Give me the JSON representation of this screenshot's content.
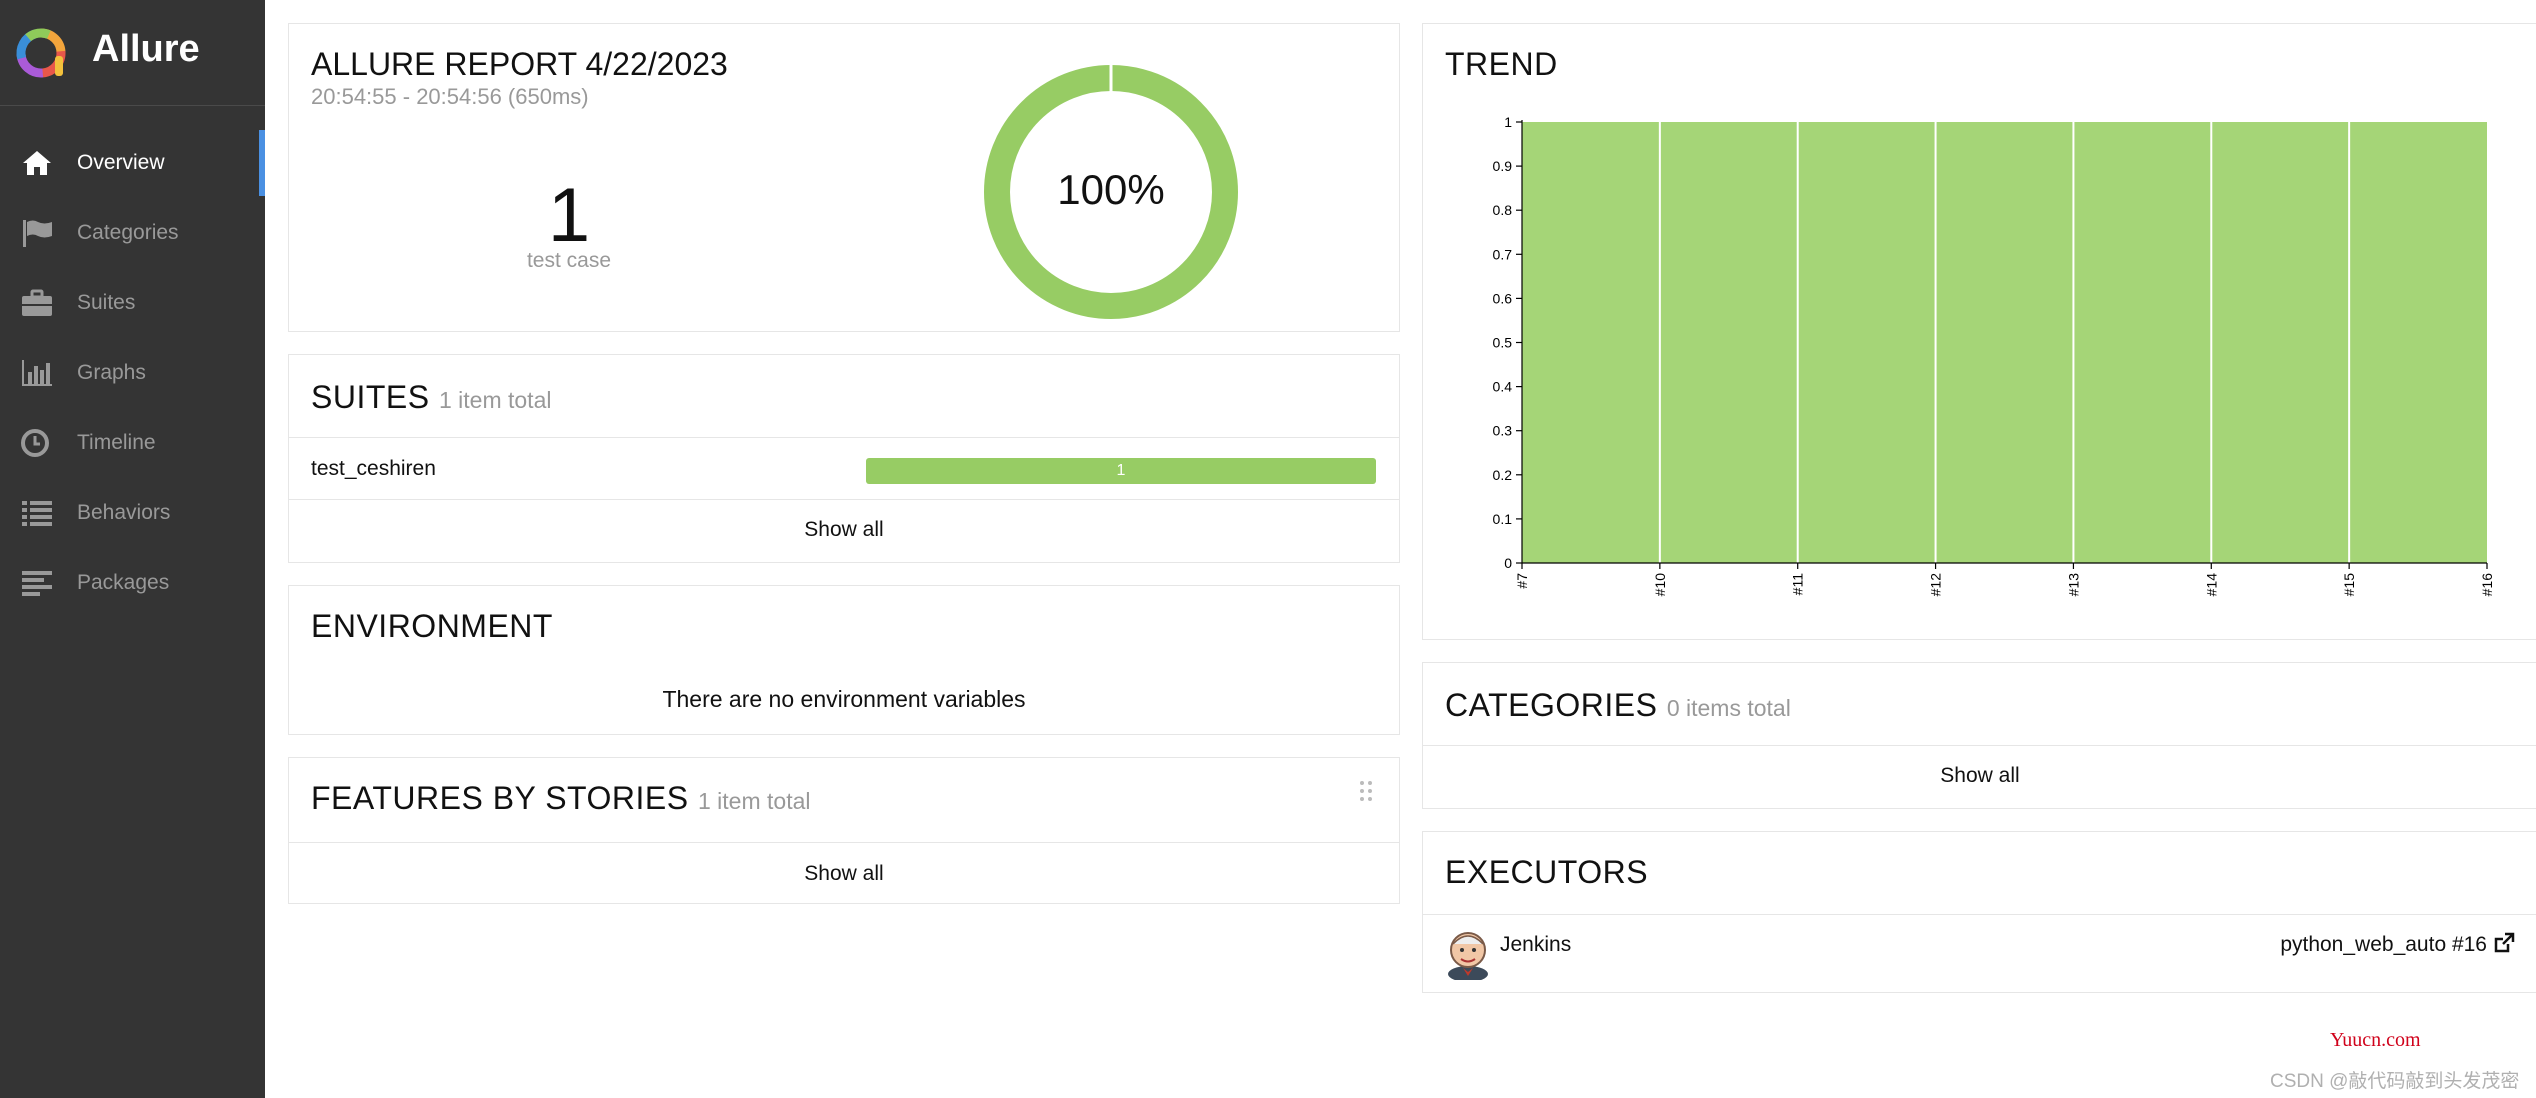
{
  "app": {
    "name": "Allure"
  },
  "nav": {
    "items": [
      {
        "label": "Overview",
        "icon": "home-icon",
        "active": true
      },
      {
        "label": "Categories",
        "icon": "flag-icon"
      },
      {
        "label": "Suites",
        "icon": "briefcase-icon"
      },
      {
        "label": "Graphs",
        "icon": "bar-chart-icon"
      },
      {
        "label": "Timeline",
        "icon": "clock-icon"
      },
      {
        "label": "Behaviors",
        "icon": "list-icon"
      },
      {
        "label": "Packages",
        "icon": "align-left-icon"
      }
    ]
  },
  "summary": {
    "title": "ALLURE REPORT 4/22/2023",
    "time": "20:54:55 - 20:54:56 (650ms)",
    "count": "1",
    "count_label": "test case",
    "percent": "100%",
    "passed_fraction": 1.0
  },
  "suites": {
    "title": "SUITES",
    "subtitle": "1 item total",
    "rows": [
      {
        "name": "test_ceshiren",
        "passed": "1"
      }
    ],
    "show_all": "Show all"
  },
  "environment": {
    "title": "ENVIRONMENT",
    "message": "There are no environment variables"
  },
  "features": {
    "title": "FEATURES BY STORIES",
    "subtitle": "1 item total",
    "show_all": "Show all"
  },
  "trend": {
    "title": "TREND"
  },
  "categories": {
    "title": "CATEGORIES",
    "subtitle": "0 items total",
    "show_all": "Show all"
  },
  "executors": {
    "title": "EXECUTORS",
    "name": "Jenkins",
    "build": "python_web_auto #16"
  },
  "colors": {
    "passed": "#97cc64",
    "sidebar": "#343434",
    "active_marker": "#4a90e2"
  },
  "chart_data": {
    "type": "area",
    "x": [
      "#7",
      "#10",
      "#11",
      "#12",
      "#13",
      "#14",
      "#15",
      "#16"
    ],
    "series": [
      {
        "values": [
          1,
          1,
          1,
          1,
          1,
          1,
          1,
          1
        ]
      }
    ],
    "yticks": [
      "0",
      "0.1",
      "0.2",
      "0.3",
      "0.4",
      "0.5",
      "0.6",
      "0.7",
      "0.8",
      "0.9",
      "1"
    ],
    "ylim": [
      0,
      1
    ],
    "color": "#a5d577"
  },
  "watermark": {
    "site": "Yuucn.com",
    "credit": "CSDN @敲代码敲到头发茂密"
  }
}
